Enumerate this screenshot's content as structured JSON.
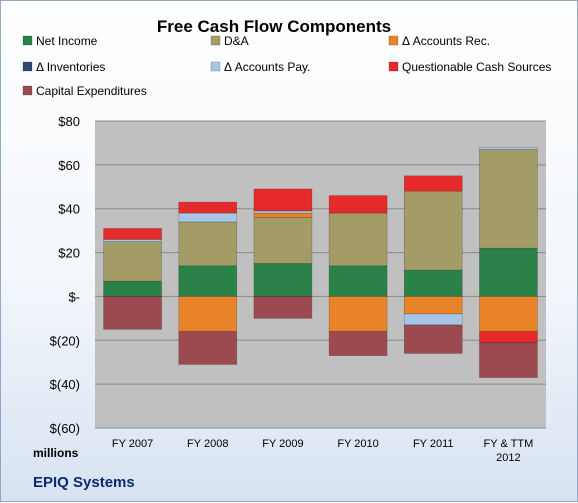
{
  "chart_data": {
    "type": "bar",
    "stacked": true,
    "title": "Free Cash Flow Components",
    "unit_label": "millions",
    "company": "EPIQ Systems",
    "categories": [
      "FY 2007",
      "FY 2008",
      "FY 2009",
      "FY 2010",
      "FY 2011",
      "FY & TTM 2012"
    ],
    "ylim": [
      -60,
      80
    ],
    "y_ticks": [
      {
        "value": 80,
        "label": "$80"
      },
      {
        "value": 60,
        "label": "$60"
      },
      {
        "value": 40,
        "label": "$40"
      },
      {
        "value": 20,
        "label": "$20"
      },
      {
        "value": 0,
        "label": "$-"
      },
      {
        "value": -20,
        "label": "$(20)"
      },
      {
        "value": -40,
        "label": "$(40)"
      },
      {
        "value": -60,
        "label": "$(60)"
      }
    ],
    "legend_placement": "top",
    "series": [
      {
        "name": "Net Income",
        "color": "#2a8248",
        "values": [
          7,
          14,
          15,
          14,
          12,
          22
        ]
      },
      {
        "name": "D&A",
        "color": "#a49c66",
        "values": [
          18,
          20,
          21,
          24,
          36,
          45
        ]
      },
      {
        "name": "Δ Accounts Rec.",
        "color": "#e8832a",
        "values": [
          0,
          -16,
          2,
          -16,
          -8,
          -16
        ]
      },
      {
        "name": "Δ Inventories",
        "color": "#2a4a70",
        "values": [
          0,
          0,
          0,
          0,
          0,
          0
        ]
      },
      {
        "name": "Δ Accounts Pay.",
        "color": "#a7c6e6",
        "values": [
          1,
          4,
          1,
          0,
          -5,
          1
        ]
      },
      {
        "name": "Questionable Cash Sources",
        "color": "#e62a2a",
        "values": [
          5,
          5,
          10,
          8,
          7,
          -5
        ]
      },
      {
        "name": "Capital Expenditures",
        "color": "#9c4a50",
        "values": [
          -15,
          -15,
          -10,
          -11,
          -13,
          -16
        ]
      }
    ]
  }
}
